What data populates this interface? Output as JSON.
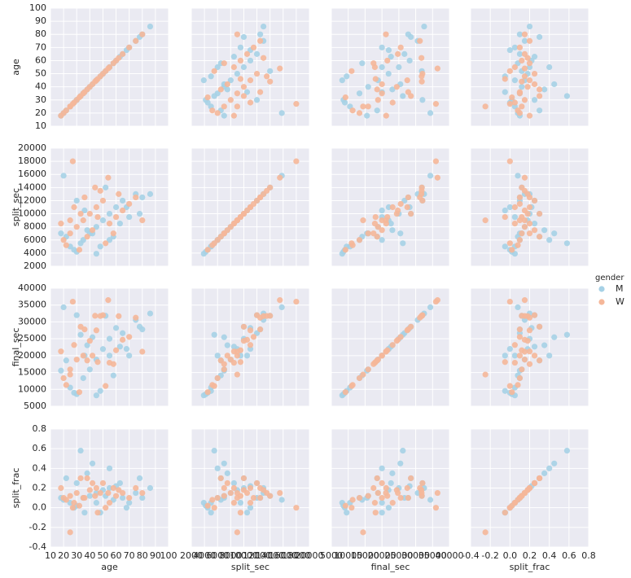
{
  "chart_data": {
    "type": "scatter",
    "grid": true,
    "legend": "right",
    "legend_title": "gender",
    "axes": [
      {
        "label": "age",
        "lim": [
          10,
          100
        ],
        "ticks": [
          10,
          20,
          30,
          40,
          50,
          60,
          70,
          80,
          90,
          100
        ]
      },
      {
        "label": "split_sec",
        "lim": [
          2000,
          20000
        ],
        "ticks": [
          2000,
          4000,
          6000,
          8000,
          10000,
          12000,
          14000,
          16000,
          18000,
          20000
        ]
      },
      {
        "label": "final_sec",
        "lim": [
          5000,
          40000
        ],
        "ticks": [
          5000,
          10000,
          15000,
          20000,
          25000,
          30000,
          35000,
          40000
        ]
      },
      {
        "label": "split_frac",
        "lim": [
          -0.4,
          0.8
        ],
        "ticks": [
          -0.4,
          -0.2,
          {
            "value": 0,
            "label": "0.0"
          },
          0.2,
          0.4,
          0.6,
          0.8
        ]
      }
    ],
    "series": [
      {
        "name": "M",
        "color": "#a6d1e6",
        "data": {
          "age": [
            25,
            30,
            35,
            40,
            45,
            50,
            55,
            60,
            65,
            70,
            75,
            80,
            86,
            20,
            33,
            28,
            22,
            38,
            48,
            52,
            42,
            58,
            63,
            68,
            18,
            45,
            36,
            78,
            55,
            30
          ],
          "split_sec": [
            5000,
            4200,
            6000,
            7000,
            8000,
            9000,
            10000,
            11000,
            12000,
            9500,
            13000,
            12500,
            13000,
            15800,
            5500,
            4500,
            6500,
            7500,
            5000,
            14000,
            7000,
            6500,
            8500,
            11000,
            7000,
            3900,
            10500,
            10000,
            6000,
            12000
          ],
          "final_sec": [
            10526,
            8571,
            13333,
            15909,
            18824,
            21951,
            25000,
            28205,
            26667,
            20000,
            30588,
            27778,
            32500,
            34348,
            26190,
            9000,
            18571,
            23077,
            9524,
            31818,
            25455,
            14130,
            22667,
            22000,
            15556,
            8211,
            20000,
            28571,
            20000,
            32000
          ],
          "split_frac": [
            0.05,
            0.02,
            0.1,
            0.12,
            0.15,
            0.18,
            0.2,
            0.22,
            0.1,
            0.05,
            0.15,
            0.1,
            0.2,
            0.08,
            0.58,
            0,
            0.3,
            0.35,
            -0.05,
            0.12,
            0.45,
            0.08,
            0.25,
            0,
            0.1,
            0.05,
            -0.05,
            0.3,
            0.4,
            0.25
          ]
        }
      },
      {
        "name": "W",
        "color": "#f5b799",
        "data": {
          "age": [
            20,
            25,
            30,
            35,
            40,
            45,
            50,
            55,
            60,
            65,
            70,
            75,
            80,
            27,
            25,
            32,
            22,
            38,
            42,
            48,
            52,
            28,
            36,
            44,
            58,
            33,
            62,
            18,
            46,
            54
          ],
          "split_sec": [
            6000,
            7000,
            8000,
            9000,
            10000,
            11000,
            12000,
            8500,
            9500,
            10500,
            11500,
            12500,
            9000,
            18000,
            9000,
            4500,
            5200,
            6500,
            7500,
            13500,
            5500,
            11000,
            12500,
            14000,
            7000,
            10000,
            13000,
            8500,
            9500,
            15500
          ],
          "final_sec": [
            13333,
            15909,
            18824,
            20000,
            24390,
            27500,
            32000,
            17895,
            21591,
            24706,
            25556,
            31250,
            21176,
            36000,
            14400,
            9184,
            11304,
            18571,
            20000,
            31765,
            11000,
            23158,
            27778,
            31818,
            17500,
            28571,
            31707,
            21250,
            18095,
            36471
          ],
          "split_frac": [
            0.1,
            0.12,
            0.15,
            0.1,
            0.18,
            0.2,
            0.25,
            0.05,
            0.12,
            0.15,
            0.1,
            0.2,
            0.15,
            0,
            -0.25,
            0.02,
            0.08,
            0.3,
            0.25,
            0.15,
            0,
            0.05,
            0.1,
            0.12,
            0.2,
            0.3,
            0.18,
            0.2,
            -0.05,
            0.15
          ]
        }
      }
    ]
  }
}
